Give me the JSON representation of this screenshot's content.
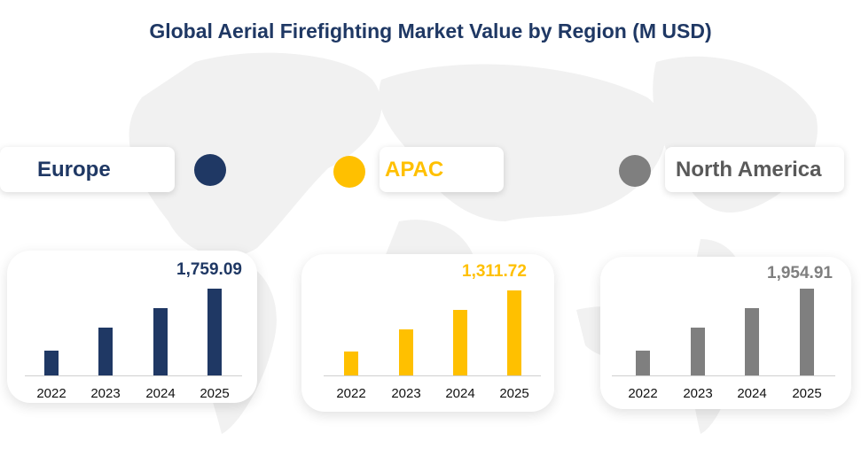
{
  "title": "Global Aerial Firefighting Market Value by Region (M USD)",
  "chart_data": [
    {
      "type": "bar",
      "region": "Europe",
      "color": "#1f3864",
      "categories": [
        "2022",
        "2023",
        "2024",
        "2025"
      ],
      "values": [
        503,
        968,
        1365,
        1759.09
      ],
      "value_label": "1,759.09"
    },
    {
      "type": "bar",
      "region": "APAC",
      "color": "#ffc000",
      "categories": [
        "2022",
        "2023",
        "2024",
        "2025"
      ],
      "values": [
        370,
        713,
        1009,
        1311.72
      ],
      "value_label": "1,311.72"
    },
    {
      "type": "bar",
      "region": "North America",
      "color": "#7f7f7f",
      "categories": [
        "2022",
        "2023",
        "2024",
        "2025"
      ],
      "values": [
        560,
        1080,
        1520,
        1954.91
      ],
      "value_label": "1,954.91"
    }
  ]
}
